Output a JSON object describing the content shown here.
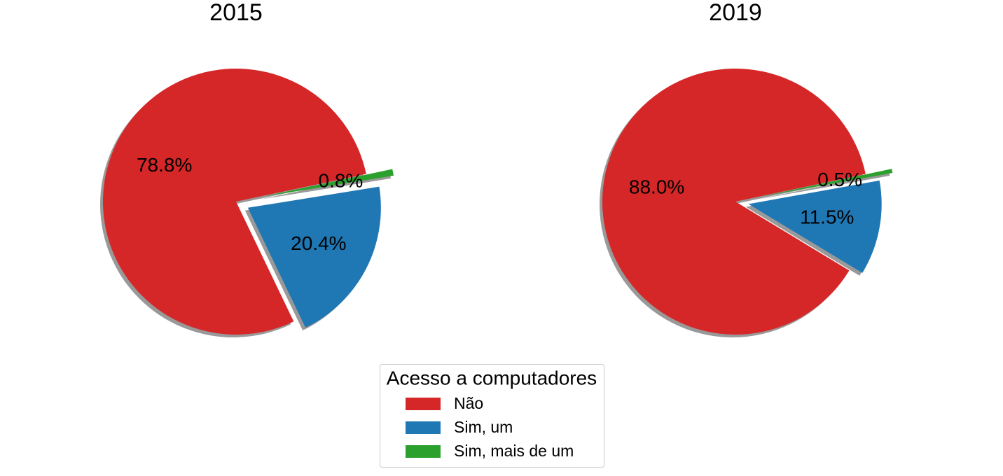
{
  "chart_data": [
    {
      "type": "pie",
      "title": "2015",
      "categories": [
        "Não",
        "Sim, um",
        "Sim, mais de um"
      ],
      "values": [
        78.8,
        20.4,
        0.8
      ],
      "value_labels": [
        "78.8%",
        "20.4%",
        "0.8%"
      ],
      "colors": [
        "#d62728",
        "#1f77b4",
        "#2ca02c"
      ]
    },
    {
      "type": "pie",
      "title": "2019",
      "categories": [
        "Não",
        "Sim, um",
        "Sim, mais de um"
      ],
      "values": [
        88.0,
        11.5,
        0.5
      ],
      "value_labels": [
        "88.0%",
        "11.5%",
        "0.5%"
      ],
      "colors": [
        "#d62728",
        "#1f77b4",
        "#2ca02c"
      ]
    }
  ],
  "legend_title": "Acesso a computadores"
}
